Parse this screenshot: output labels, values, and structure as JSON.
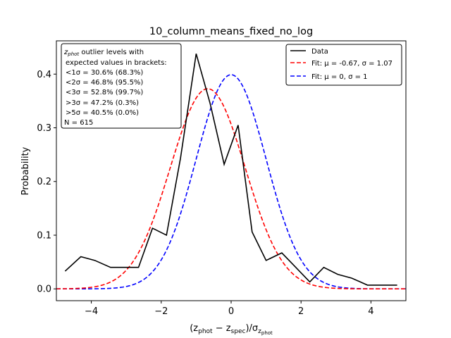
{
  "chart_data": {
    "type": "line",
    "title": "10_column_means_fixed_no_log",
    "xlabel": "(z_phot − z_spec)/σ_z_phot",
    "ylabel": "Probability",
    "xlim": [
      -5,
      5
    ],
    "ylim": [
      -0.022,
      0.462
    ],
    "x_ticks": [
      -4,
      -2,
      0,
      2,
      4
    ],
    "x_tick_labels": [
      "−4",
      "−2",
      "0",
      "2",
      "4"
    ],
    "y_ticks": [
      0.0,
      0.1,
      0.2,
      0.3,
      0.4
    ],
    "y_tick_labels": [
      "0.0",
      "0.1",
      "0.2",
      "0.3",
      "0.4"
    ],
    "grid": false,
    "legend_position": "top-right",
    "series": [
      {
        "name": "Data",
        "style": "solid",
        "color": "#000000",
        "x": [
          -4.75,
          -4.3,
          -3.9,
          -3.45,
          -3.05,
          -2.65,
          -2.25,
          -1.85,
          -1.45,
          -1.0,
          -0.6,
          -0.2,
          0.2,
          0.6,
          1.0,
          1.45,
          1.85,
          2.25,
          2.65,
          3.05,
          3.45,
          3.9,
          4.3,
          4.75
        ],
        "y": [
          0.033,
          0.06,
          0.053,
          0.04,
          0.04,
          0.04,
          0.113,
          0.1,
          0.243,
          0.438,
          0.345,
          0.232,
          0.305,
          0.106,
          0.053,
          0.067,
          0.04,
          0.013,
          0.04,
          0.027,
          0.02,
          0.007,
          0.007,
          0.007
        ]
      },
      {
        "name": "Fit: μ = -0.67, σ = 1.07",
        "style": "dashed",
        "color": "#ff0000",
        "mu": -0.67,
        "sigma": 1.07
      },
      {
        "name": "Fit: μ = 0, σ = 1",
        "style": "dashed",
        "color": "#0000ff",
        "mu": 0,
        "sigma": 1
      }
    ],
    "annotation": {
      "lines": [
        "z_phot outlier levels with",
        "expected values in brackets:",
        "<1σ = 30.6% (68.3%)",
        "<2σ = 46.8% (95.5%)",
        "<3σ = 52.8% (99.7%)",
        ">3σ = 47.2% (0.3%)",
        ">5σ = 40.5% (0.0%)",
        "N = 615"
      ]
    }
  }
}
